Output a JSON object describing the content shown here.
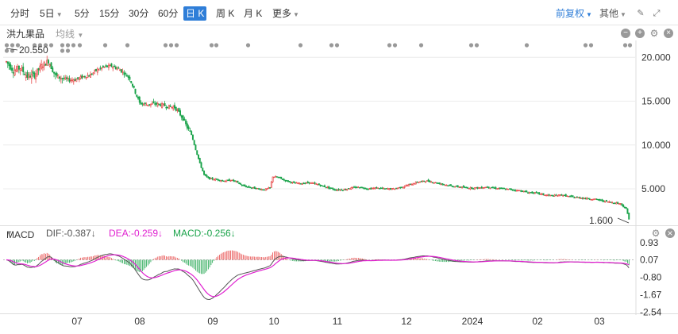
{
  "toolbar": {
    "timeframes": [
      "分时",
      "5日",
      "5分",
      "15分",
      "30分",
      "60分",
      "日 K",
      "周 K",
      "月 K",
      "更多"
    ],
    "active": "日 K",
    "adjust_label": "前复权",
    "other_label": "其他"
  },
  "stock": {
    "name": "洪九果品",
    "ma_label": "均线"
  },
  "price_chart": {
    "y_ticks": [
      "20.000",
      "15.000",
      "10.000",
      "5.000"
    ],
    "high_label": "20.550",
    "low_label": "1.600"
  },
  "macd": {
    "title": "MACD",
    "dif": "DIF:-0.387↓",
    "dea": "DEA:-0.259↓",
    "macd": "MACD:-0.256↓",
    "y_ticks": [
      "0.93",
      "0.07",
      "-0.80",
      "-1.67",
      "-2.54"
    ]
  },
  "x_axis": [
    "07",
    "08",
    "09",
    "10",
    "11",
    "12",
    "2024",
    "02",
    "03"
  ],
  "colors": {
    "up": "#e84a4a",
    "down": "#1aa34a",
    "dif": "#555555",
    "dea": "#e020d0",
    "accent": "#2f7ed8"
  },
  "chart_data": {
    "type": "candlestick",
    "ylim": [
      1.6,
      20.55
    ],
    "close_path": [
      [
        0,
        19.5
      ],
      [
        5,
        18.5
      ],
      [
        10,
        18.8
      ],
      [
        15,
        17.8
      ],
      [
        20,
        18.0
      ],
      [
        25,
        19.0
      ],
      [
        30,
        19.6
      ],
      [
        35,
        17.9
      ],
      [
        40,
        17.6
      ],
      [
        45,
        17.4
      ],
      [
        50,
        17.5
      ],
      [
        55,
        17.8
      ],
      [
        60,
        18.0
      ],
      [
        65,
        18.6
      ],
      [
        70,
        18.9
      ],
      [
        75,
        19.0
      ],
      [
        80,
        18.7
      ],
      [
        84,
        18.2
      ],
      [
        88,
        17.6
      ],
      [
        92,
        16.0
      ],
      [
        95,
        14.8
      ],
      [
        100,
        14.6
      ],
      [
        105,
        14.7
      ],
      [
        110,
        14.6
      ],
      [
        115,
        14.4
      ],
      [
        120,
        14.3
      ],
      [
        123,
        13.7
      ],
      [
        126,
        13.0
      ],
      [
        129,
        12.0
      ],
      [
        132,
        11.2
      ],
      [
        135,
        9.5
      ],
      [
        138,
        7.9
      ],
      [
        141,
        6.6
      ],
      [
        144,
        6.2
      ],
      [
        148,
        6.1
      ],
      [
        152,
        6.0
      ],
      [
        156,
        5.9
      ],
      [
        160,
        6.0
      ],
      [
        164,
        5.8
      ],
      [
        168,
        5.4
      ],
      [
        172,
        5.2
      ],
      [
        176,
        5.1
      ],
      [
        180,
        5.0
      ],
      [
        184,
        4.9
      ],
      [
        188,
        5.1
      ],
      [
        190,
        6.4
      ],
      [
        194,
        6.3
      ],
      [
        198,
        6.0
      ],
      [
        204,
        5.7
      ],
      [
        210,
        5.6
      ],
      [
        216,
        5.7
      ],
      [
        222,
        5.5
      ],
      [
        228,
        5.2
      ],
      [
        234,
        4.9
      ],
      [
        240,
        4.9
      ],
      [
        246,
        5.1
      ],
      [
        252,
        5.2
      ],
      [
        258,
        5.0
      ],
      [
        264,
        5.1
      ],
      [
        270,
        5.0
      ],
      [
        276,
        5.0
      ],
      [
        282,
        5.2
      ],
      [
        288,
        5.5
      ],
      [
        294,
        5.8
      ],
      [
        300,
        5.9
      ],
      [
        306,
        5.7
      ],
      [
        312,
        5.5
      ],
      [
        318,
        5.3
      ],
      [
        324,
        5.2
      ],
      [
        330,
        5.1
      ],
      [
        336,
        5.1
      ],
      [
        342,
        5.2
      ],
      [
        348,
        5.1
      ],
      [
        354,
        5.0
      ],
      [
        360,
        4.9
      ],
      [
        366,
        4.8
      ],
      [
        372,
        4.6
      ],
      [
        378,
        4.5
      ],
      [
        384,
        4.3
      ],
      [
        390,
        4.2
      ],
      [
        396,
        4.3
      ],
      [
        402,
        4.1
      ],
      [
        408,
        4.0
      ],
      [
        414,
        3.9
      ],
      [
        420,
        3.8
      ],
      [
        426,
        3.6
      ],
      [
        430,
        3.5
      ],
      [
        434,
        3.4
      ],
      [
        438,
        3.3
      ],
      [
        442,
        2.7
      ],
      [
        444,
        1.6
      ]
    ],
    "volatility_rules": [
      {
        "from": 0,
        "to": 40,
        "body": 1.2
      },
      {
        "from": 40,
        "to": 132,
        "body": 0.7
      },
      {
        "from": 132,
        "to": 444,
        "body": 0.28
      }
    ],
    "days": 445,
    "seed": 7
  }
}
